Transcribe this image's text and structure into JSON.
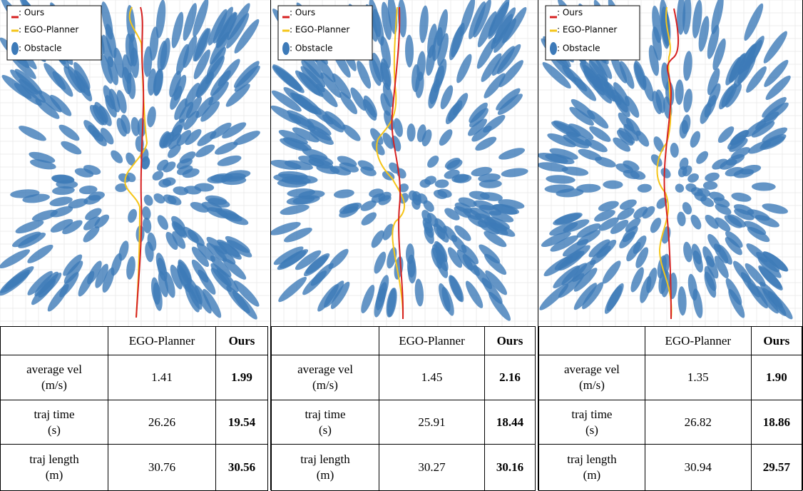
{
  "panels": [
    {
      "legend": [
        ": Ours",
        ": EGO-Planner",
        ": Obstacle"
      ],
      "table": {
        "header": [
          "EGO-Planner",
          "Ours"
        ],
        "rows": [
          [
            "average vel\n(m/s)",
            "1.41",
            "1.99"
          ],
          [
            "traj time\n(s)",
            "26.26",
            "19.54"
          ],
          [
            "traj length\n(m)",
            "30.76",
            "30.56"
          ]
        ]
      }
    },
    {
      "legend": [
        ": Ours",
        ": EGO-Planner",
        ": Obstacle"
      ],
      "table": {
        "header": [
          "EGO-Planner",
          "Ours"
        ],
        "rows": [
          [
            "average vel\n(m/s)",
            "1.45",
            "2.16"
          ],
          [
            "traj time\n(s)",
            "25.91",
            "18.44"
          ],
          [
            "traj length\n(m)",
            "30.27",
            "30.16"
          ]
        ]
      }
    },
    {
      "legend": [
        ": Ours",
        ": EGO-Planner",
        ": Obstacle"
      ],
      "table": {
        "header": [
          "EGO-Planner",
          "Ours"
        ],
        "rows": [
          [
            "average vel\n(m/s)",
            "1.35",
            "1.90"
          ],
          [
            "traj time\n(s)",
            "26.82",
            "18.86"
          ],
          [
            "traj length\n(m)",
            "30.94",
            "29.57"
          ]
        ]
      }
    }
  ]
}
